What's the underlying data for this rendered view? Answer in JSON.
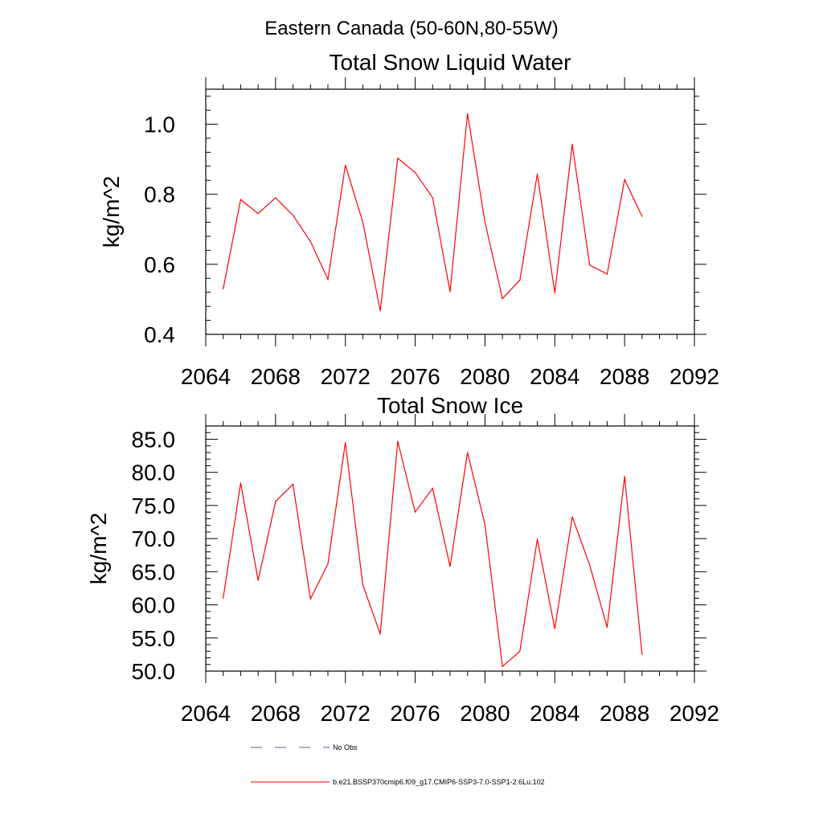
{
  "figure": {
    "title": "Eastern Canada (50-60N,80-55W)"
  },
  "chart_data": [
    {
      "type": "line",
      "title": "Total Snow Liquid Water",
      "xlabel": "",
      "ylabel": "kg/m^2",
      "xlim": [
        2064,
        2092
      ],
      "ylim": [
        0.4,
        1.1
      ],
      "xticks": [
        "2064",
        "2068",
        "2072",
        "2076",
        "2080",
        "2084",
        "2088",
        "2092"
      ],
      "yticks": [
        "0.4",
        "0.6",
        "0.8",
        "1.0"
      ],
      "grid": false,
      "series": [
        {
          "name": "b.e21.BSSP370cmip6.f09_g17.CMIP6-SSP3-7.0-SSP1-2.6Lu.102",
          "color": "#ff0000",
          "x": [
            2065,
            2066,
            2067,
            2068,
            2069,
            2070,
            2071,
            2072,
            2073,
            2074,
            2075,
            2076,
            2077,
            2078,
            2079,
            2080,
            2081,
            2082,
            2083,
            2084,
            2085,
            2086,
            2087,
            2088,
            2089
          ],
          "values": [
            0.53,
            0.785,
            0.745,
            0.79,
            0.74,
            0.665,
            0.557,
            0.883,
            0.72,
            0.467,
            0.903,
            0.862,
            0.79,
            0.522,
            1.03,
            0.72,
            0.502,
            0.555,
            0.858,
            0.518,
            0.943,
            0.598,
            0.572,
            0.842,
            0.737
          ]
        }
      ]
    },
    {
      "type": "line",
      "title": "Total Snow Ice",
      "xlabel": "",
      "ylabel": "kg/m^2",
      "xlim": [
        2064,
        2092
      ],
      "ylim": [
        50.0,
        87.0
      ],
      "xticks": [
        "2064",
        "2068",
        "2072",
        "2076",
        "2080",
        "2084",
        "2088",
        "2092"
      ],
      "yticks": [
        "50.0",
        "55.0",
        "60.0",
        "65.0",
        "70.0",
        "75.0",
        "80.0",
        "85.0"
      ],
      "grid": false,
      "series": [
        {
          "name": "b.e21.BSSP370cmip6.f09_g17.CMIP6-SSP3-7.0-SSP1-2.6Lu.102",
          "color": "#ff0000",
          "x": [
            2065,
            2066,
            2067,
            2068,
            2069,
            2070,
            2071,
            2072,
            2073,
            2074,
            2075,
            2076,
            2077,
            2078,
            2079,
            2080,
            2081,
            2082,
            2083,
            2084,
            2085,
            2086,
            2087,
            2088,
            2089
          ],
          "values": [
            61.0,
            78.4,
            63.7,
            75.6,
            78.2,
            60.9,
            66.2,
            84.5,
            63.0,
            55.6,
            84.7,
            74.0,
            77.6,
            65.8,
            83.0,
            72.1,
            50.7,
            53.0,
            69.9,
            56.4,
            73.3,
            66.0,
            56.6,
            79.4,
            52.5
          ]
        }
      ]
    }
  ],
  "legend": {
    "placement": "bottom",
    "entries": [
      {
        "label": "No Obs",
        "color": "#5a5a9a",
        "style": "dashed"
      },
      {
        "label": "b.e21.BSSP370cmip6.f09_g17.CMIP6-SSP3-7.0-SSP1-2.6Lu.102",
        "color": "#ff0000",
        "style": "solid"
      }
    ]
  }
}
